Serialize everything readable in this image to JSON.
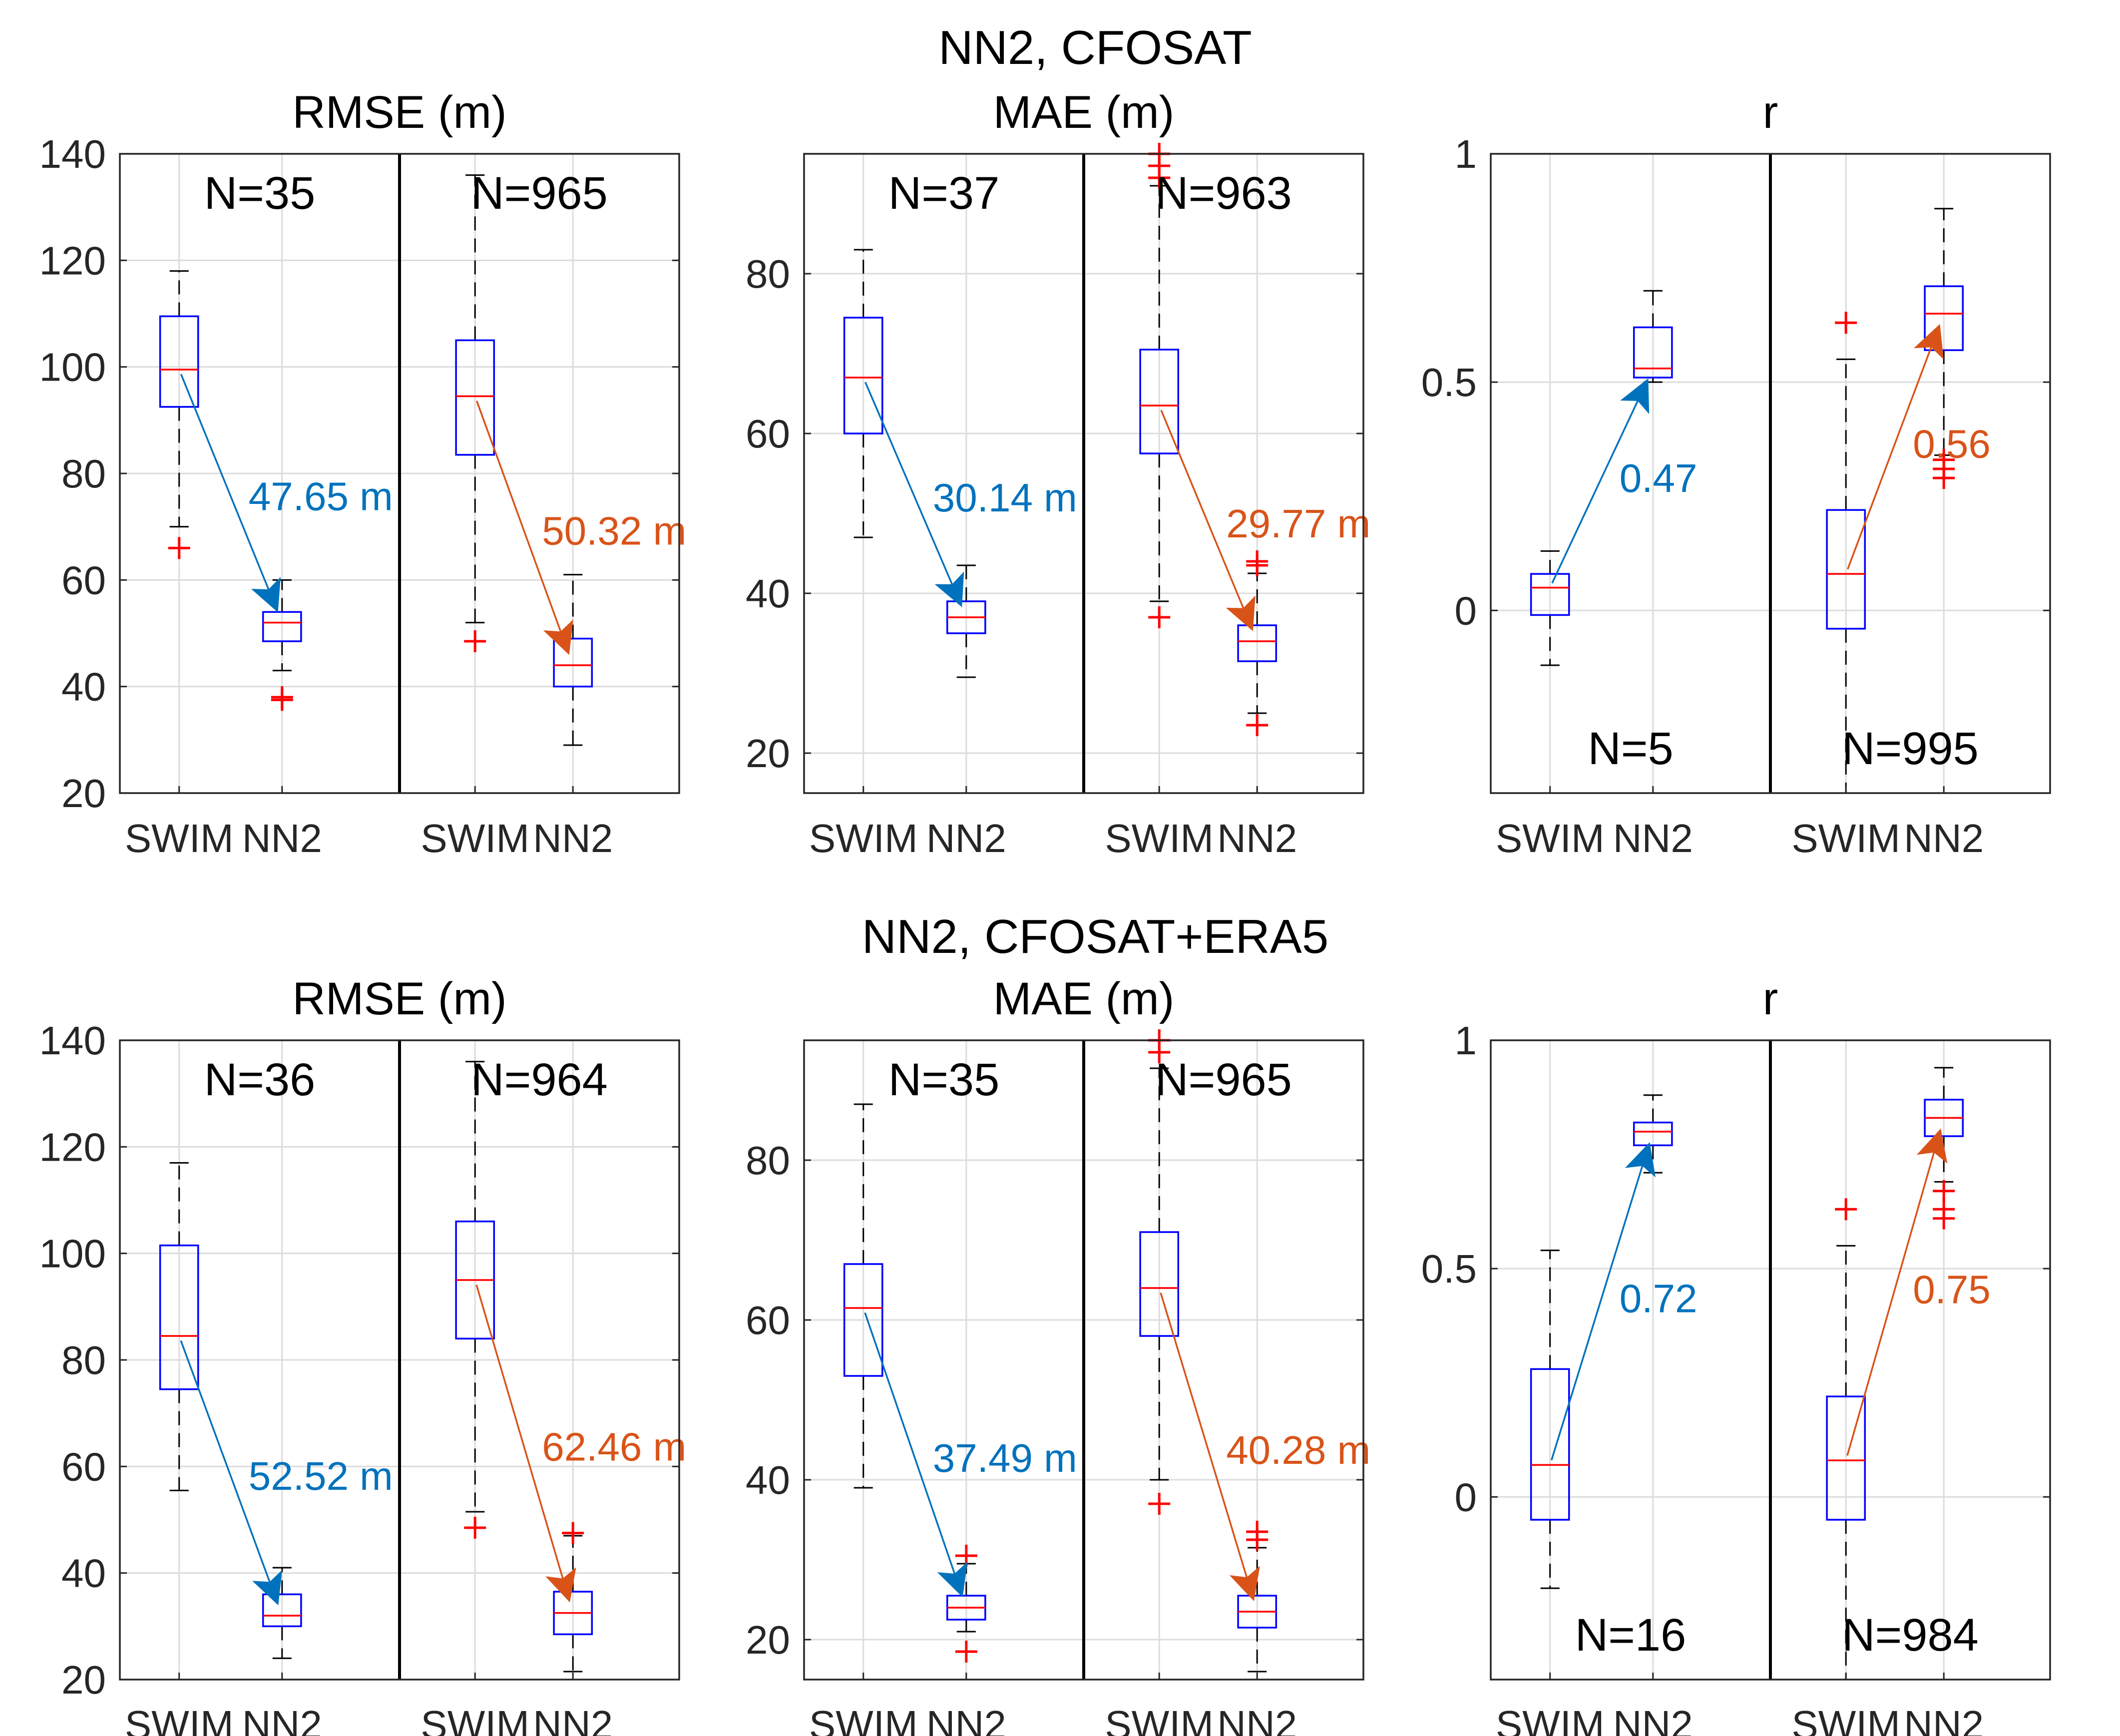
{
  "colors": {
    "blue_arrow": "#0072BD",
    "orange_arrow": "#D95319",
    "box": "#0000FF",
    "median": "#FF0000",
    "outlier": "#FF0000",
    "whisker": "#000000",
    "grid": "#DCDCDC"
  },
  "rows": [
    {
      "title": "NN2, CFOSAT"
    },
    {
      "title": "NN2, CFOSAT+ERA5"
    }
  ],
  "chart_data": [
    {
      "type": "box",
      "row": 0,
      "col": 0,
      "title": "RMSE (m)",
      "ylim": [
        20,
        140
      ],
      "yticks": [
        20,
        40,
        60,
        80,
        100,
        120,
        140
      ],
      "ytick_labels": [
        "20",
        "40",
        "60",
        "80",
        "100",
        "120",
        "140"
      ],
      "grid": true,
      "n_position": "top",
      "groups": [
        {
          "n_label": "N=35",
          "boxes": [
            {
              "label": "SWIM",
              "whisker_low": 70,
              "q1": 92.5,
              "median": 99.5,
              "q3": 109.5,
              "whisker_high": 118,
              "outliers": [
                66
              ]
            },
            {
              "label": "NN2",
              "whisker_low": 43,
              "q1": 48.5,
              "median": 52,
              "q3": 54,
              "whisker_high": 60,
              "outliers": [
                38,
                37.5
              ]
            }
          ],
          "arrow": {
            "label": "47.65 m",
            "color": "blue"
          }
        },
        {
          "n_label": "N=965",
          "boxes": [
            {
              "label": "SWIM",
              "whisker_low": 52,
              "q1": 83.5,
              "median": 94.5,
              "q3": 105,
              "whisker_high": 136,
              "outliers": [
                48.5
              ]
            },
            {
              "label": "NN2",
              "whisker_low": 29,
              "q1": 40,
              "median": 44,
              "q3": 49,
              "whisker_high": 61,
              "outliers": []
            }
          ],
          "arrow": {
            "label": "50.32 m",
            "color": "orange"
          }
        }
      ]
    },
    {
      "type": "box",
      "row": 0,
      "col": 1,
      "title": "MAE (m)",
      "ylim": [
        15,
        95
      ],
      "yticks": [
        20,
        40,
        60,
        80
      ],
      "ytick_labels": [
        "20",
        "40",
        "60",
        "80"
      ],
      "grid": true,
      "n_position": "top",
      "groups": [
        {
          "n_label": "N=37",
          "boxes": [
            {
              "label": "SWIM",
              "whisker_low": 47,
              "q1": 60,
              "median": 67,
              "q3": 74.5,
              "whisker_high": 83,
              "outliers": []
            },
            {
              "label": "NN2",
              "whisker_low": 29.5,
              "q1": 35,
              "median": 37,
              "q3": 39,
              "whisker_high": 43.5,
              "outliers": []
            }
          ],
          "arrow": {
            "label": "30.14 m",
            "color": "blue"
          }
        },
        {
          "n_label": "N=963",
          "boxes": [
            {
              "label": "SWIM",
              "whisker_low": 39,
              "q1": 57.5,
              "median": 63.5,
              "q3": 70.5,
              "whisker_high": 91,
              "outliers": [
                37,
                92,
                93.5,
                95
              ]
            },
            {
              "label": "NN2",
              "whisker_low": 25,
              "q1": 31.5,
              "median": 34,
              "q3": 36,
              "whisker_high": 42.5,
              "outliers": [
                23.5,
                43.5,
                44
              ]
            }
          ],
          "arrow": {
            "label": "29.77 m",
            "color": "orange"
          }
        }
      ]
    },
    {
      "type": "box",
      "row": 0,
      "col": 2,
      "title": "r",
      "ylim": [
        -0.4,
        1
      ],
      "yticks": [
        0,
        0.5,
        1
      ],
      "ytick_labels": [
        "0",
        "0.5",
        "1"
      ],
      "grid": true,
      "n_position": "bottom",
      "groups": [
        {
          "n_label": "N=5",
          "boxes": [
            {
              "label": "SWIM",
              "whisker_low": -0.12,
              "q1": -0.01,
              "median": 0.05,
              "q3": 0.08,
              "whisker_high": 0.13,
              "outliers": []
            },
            {
              "label": "NN2",
              "whisker_low": 0.5,
              "q1": 0.51,
              "median": 0.53,
              "q3": 0.62,
              "whisker_high": 0.7,
              "outliers": []
            }
          ],
          "arrow": {
            "label": "0.47",
            "color": "blue"
          }
        },
        {
          "n_label": "N=995",
          "boxes": [
            {
              "label": "SWIM",
              "whisker_low": -0.4,
              "q1": -0.04,
              "median": 0.08,
              "q3": 0.22,
              "whisker_high": 0.55,
              "outliers": [
                0.63
              ]
            },
            {
              "label": "NN2",
              "whisker_low": 0.34,
              "q1": 0.57,
              "median": 0.65,
              "q3": 0.71,
              "whisker_high": 0.88,
              "outliers": [
                0.29,
                0.31,
                0.33
              ]
            }
          ],
          "arrow": {
            "label": "0.56",
            "color": "orange"
          }
        }
      ]
    },
    {
      "type": "box",
      "row": 1,
      "col": 0,
      "title": "RMSE (m)",
      "ylim": [
        20,
        140
      ],
      "yticks": [
        20,
        40,
        60,
        80,
        100,
        120,
        140
      ],
      "ytick_labels": [
        "20",
        "40",
        "60",
        "80",
        "100",
        "120",
        "140"
      ],
      "grid": true,
      "n_position": "top",
      "groups": [
        {
          "n_label": "N=36",
          "boxes": [
            {
              "label": "SWIM",
              "whisker_low": 55.5,
              "q1": 74.5,
              "median": 84.5,
              "q3": 101.5,
              "whisker_high": 117,
              "outliers": []
            },
            {
              "label": "NN2",
              "whisker_low": 24,
              "q1": 30,
              "median": 32,
              "q3": 36,
              "whisker_high": 41,
              "outliers": []
            }
          ],
          "arrow": {
            "label": "52.52 m",
            "color": "blue"
          }
        },
        {
          "n_label": "N=964",
          "boxes": [
            {
              "label": "SWIM",
              "whisker_low": 51.5,
              "q1": 84,
              "median": 95,
              "q3": 106,
              "whisker_high": 136,
              "outliers": [
                48.5
              ]
            },
            {
              "label": "NN2",
              "whisker_low": 21.5,
              "q1": 28.5,
              "median": 32.5,
              "q3": 36.5,
              "whisker_high": 47,
              "outliers": [
                47.5
              ]
            }
          ],
          "arrow": {
            "label": "62.46 m",
            "color": "orange"
          }
        }
      ]
    },
    {
      "type": "box",
      "row": 1,
      "col": 1,
      "title": "MAE (m)",
      "ylim": [
        15,
        95
      ],
      "yticks": [
        20,
        40,
        60,
        80
      ],
      "ytick_labels": [
        "20",
        "40",
        "60",
        "80"
      ],
      "grid": true,
      "n_position": "top",
      "groups": [
        {
          "n_label": "N=35",
          "boxes": [
            {
              "label": "SWIM",
              "whisker_low": 39,
              "q1": 53,
              "median": 61.5,
              "q3": 67,
              "whisker_high": 87,
              "outliers": []
            },
            {
              "label": "NN2",
              "whisker_low": 21,
              "q1": 22.5,
              "median": 24,
              "q3": 25.5,
              "whisker_high": 29.5,
              "outliers": [
                18.5,
                30.5
              ]
            }
          ],
          "arrow": {
            "label": "37.49 m",
            "color": "blue"
          }
        },
        {
          "n_label": "N=965",
          "boxes": [
            {
              "label": "SWIM",
              "whisker_low": 40,
              "q1": 58,
              "median": 64,
              "q3": 71,
              "whisker_high": 91.5,
              "outliers": [
                37,
                93.5,
                95
              ]
            },
            {
              "label": "NN2",
              "whisker_low": 16,
              "q1": 21.5,
              "median": 23.5,
              "q3": 25.5,
              "whisker_high": 31.5,
              "outliers": [
                32.5,
                33.5
              ]
            }
          ],
          "arrow": {
            "label": "40.28 m",
            "color": "orange"
          }
        }
      ]
    },
    {
      "type": "box",
      "row": 1,
      "col": 2,
      "title": "r",
      "ylim": [
        -0.4,
        1
      ],
      "yticks": [
        0,
        0.5,
        1
      ],
      "ytick_labels": [
        "0",
        "0.5",
        "1"
      ],
      "grid": true,
      "n_position": "bottom",
      "groups": [
        {
          "n_label": "N=16",
          "boxes": [
            {
              "label": "SWIM",
              "whisker_low": -0.2,
              "q1": -0.05,
              "median": 0.07,
              "q3": 0.28,
              "whisker_high": 0.54,
              "outliers": []
            },
            {
              "label": "NN2",
              "whisker_low": 0.71,
              "q1": 0.77,
              "median": 0.8,
              "q3": 0.82,
              "whisker_high": 0.88,
              "outliers": []
            }
          ],
          "arrow": {
            "label": "0.72",
            "color": "blue"
          }
        },
        {
          "n_label": "N=984",
          "boxes": [
            {
              "label": "SWIM",
              "whisker_low": -0.4,
              "q1": -0.05,
              "median": 0.08,
              "q3": 0.22,
              "whisker_high": 0.55,
              "outliers": [
                0.63
              ]
            },
            {
              "label": "NN2",
              "whisker_low": 0.69,
              "q1": 0.79,
              "median": 0.83,
              "q3": 0.87,
              "whisker_high": 0.94,
              "outliers": [
                0.61,
                0.63,
                0.67
              ]
            }
          ],
          "arrow": {
            "label": "0.75",
            "color": "orange"
          }
        }
      ]
    }
  ]
}
